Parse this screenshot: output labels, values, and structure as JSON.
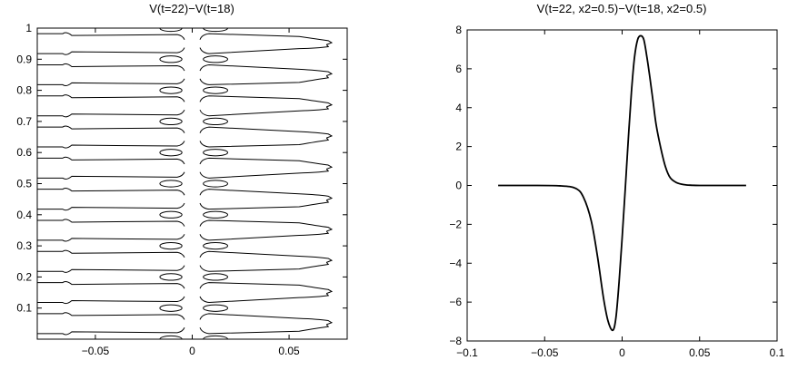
{
  "chart_data": [
    {
      "type": "contour",
      "title": "V(t=22)−V(t=18)",
      "xlim": [
        -0.08,
        0.08
      ],
      "ylim": [
        0,
        1
      ],
      "x_ticks": [
        "−0.05",
        "0",
        "0.05"
      ],
      "x_tick_values": [
        -0.05,
        0,
        0.05
      ],
      "y_ticks": [
        "0.1",
        "0.2",
        "0.3",
        "0.4",
        "0.5",
        "0.6",
        "0.7",
        "0.8",
        "0.9",
        "1"
      ],
      "y_tick_values": [
        0.1,
        0.2,
        0.3,
        0.4,
        0.5,
        0.6,
        0.7,
        0.8,
        0.9,
        1.0
      ],
      "grid": false,
      "band_centers": [
        0.05,
        0.15,
        0.25,
        0.35,
        0.45,
        0.55,
        0.65,
        0.75,
        0.85,
        0.95
      ],
      "band_half_height": 0.032,
      "band_x_range": [
        -0.08,
        0.074
      ],
      "center_gap_x": [
        -0.004,
        0.004
      ],
      "notch_x": [
        -0.065,
        0.072
      ],
      "loop_x": [
        -0.011,
        0.012
      ],
      "loop_y": [
        0.0,
        0.1,
        0.2,
        0.3,
        0.4,
        0.5,
        0.6,
        0.7,
        0.8,
        0.9,
        1.0
      ],
      "loop_rx": 0.006,
      "loop_ry": 0.032
    },
    {
      "type": "line",
      "title": "V(t=22, x2=0.5)−V(t=18, x2=0.5)",
      "xlim": [
        -0.1,
        0.1
      ],
      "ylim": [
        -8,
        8
      ],
      "x_ticks": [
        "−0.1",
        "−0.05",
        "0",
        "0.05",
        "0.1"
      ],
      "x_tick_values": [
        -0.1,
        -0.05,
        0,
        0.05,
        0.1
      ],
      "y_ticks": [
        "−8",
        "−6",
        "−4",
        "−2",
        "0",
        "2",
        "4",
        "6",
        "8"
      ],
      "y_tick_values": [
        -8,
        -6,
        -4,
        -2,
        0,
        2,
        4,
        6,
        8
      ],
      "grid": false,
      "x": [
        -0.08,
        -0.06,
        -0.04,
        -0.03,
        -0.025,
        -0.02,
        -0.016,
        -0.012,
        -0.009,
        -0.006,
        -0.004,
        -0.002,
        0.0,
        0.002,
        0.004,
        0.006,
        0.008,
        0.01,
        0.012,
        0.014,
        0.016,
        0.018,
        0.02,
        0.022,
        0.025,
        0.028,
        0.031,
        0.035,
        0.04,
        0.045,
        0.05,
        0.06,
        0.08
      ],
      "y": [
        0.0,
        0.0,
        -0.02,
        -0.15,
        -0.6,
        -1.8,
        -3.6,
        -5.8,
        -7.0,
        -7.45,
        -6.8,
        -5.0,
        -2.7,
        -0.2,
        2.4,
        4.8,
        6.6,
        7.5,
        7.7,
        7.5,
        6.6,
        5.5,
        4.3,
        3.1,
        1.9,
        0.95,
        0.4,
        0.15,
        0.04,
        0.01,
        0.0,
        0.0,
        0.0
      ]
    }
  ]
}
